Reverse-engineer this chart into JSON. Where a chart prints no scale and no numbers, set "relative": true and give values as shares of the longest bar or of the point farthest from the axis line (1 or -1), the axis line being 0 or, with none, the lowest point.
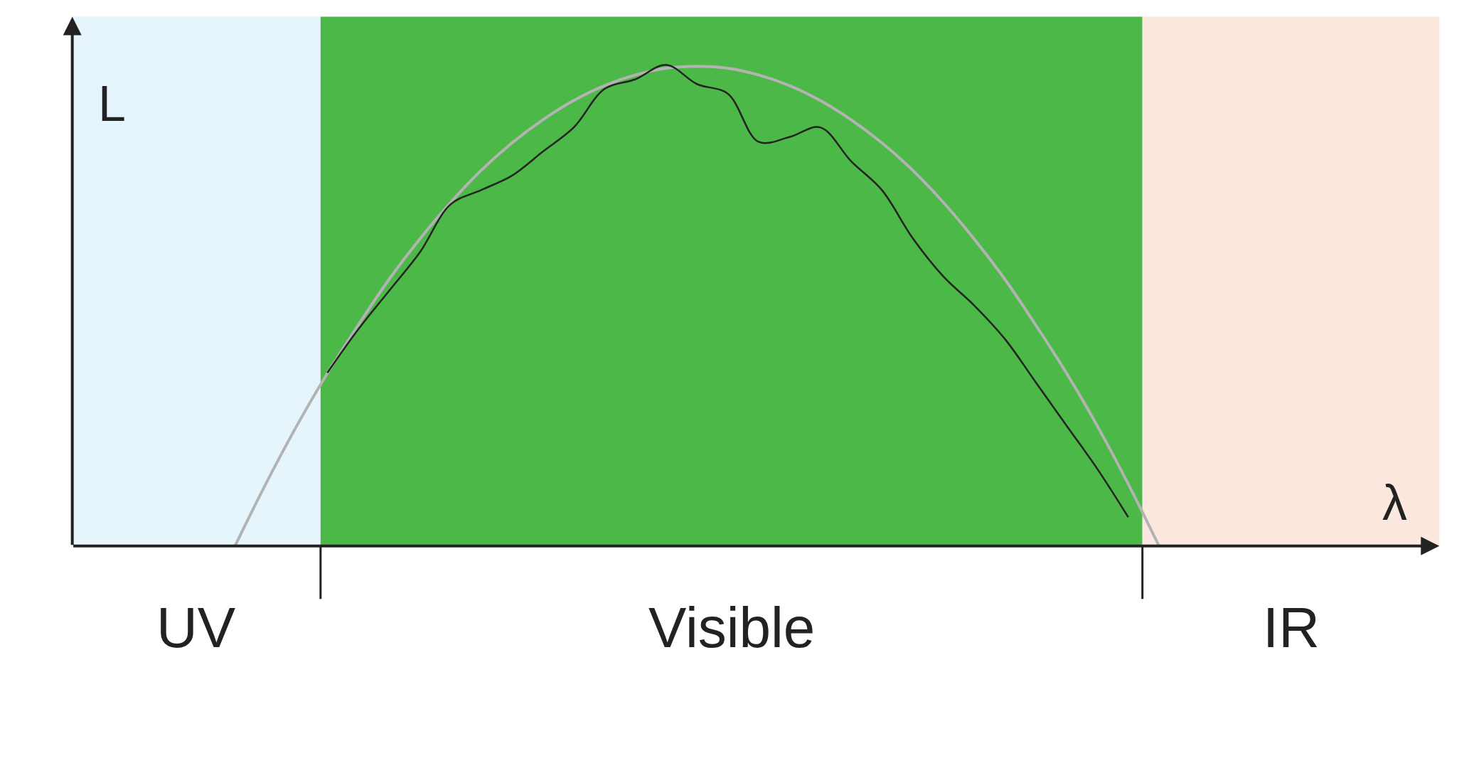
{
  "chart_data": {
    "type": "line",
    "relative": true,
    "xlabel": "λ",
    "ylabel": "L",
    "categories": [
      null,
      null,
      null,
      null,
      null,
      null,
      null,
      null,
      null,
      null,
      null,
      null,
      null,
      null,
      null,
      null,
      null,
      null,
      null,
      null,
      null,
      null,
      null,
      null,
      null,
      null,
      null,
      null,
      null,
      null,
      null
    ],
    "series": [
      {
        "color": "#b3b3b3",
        "values": [
          0,
          0.129,
          0.249,
          0.359,
          0.459,
          0.554,
          0.638,
          0.714,
          0.781,
          0.838,
          0.886,
          0.926,
          0.957,
          0.979,
          0.993,
          0.997,
          0.993,
          0.979,
          0.957,
          0.926,
          0.886,
          0.838,
          0.781,
          0.714,
          0.638,
          0.554,
          0.459,
          0.359,
          0.249,
          0.129,
          0
        ]
      },
      {
        "color": "#222222",
        "values": [
          null,
          null,
          null,
          0.36,
          0.45,
          0.53,
          0.61,
          0.71,
          0.74,
          0.77,
          0.82,
          0.87,
          0.95,
          0.97,
          1.0,
          0.96,
          0.94,
          0.84,
          0.85,
          0.87,
          0.8,
          0.74,
          0.64,
          0.56,
          0.5,
          0.43,
          0.34,
          0.25,
          0.16,
          0.06,
          null
        ]
      }
    ],
    "annotations": [
      "UV",
      "Visible",
      "IR"
    ]
  }
}
